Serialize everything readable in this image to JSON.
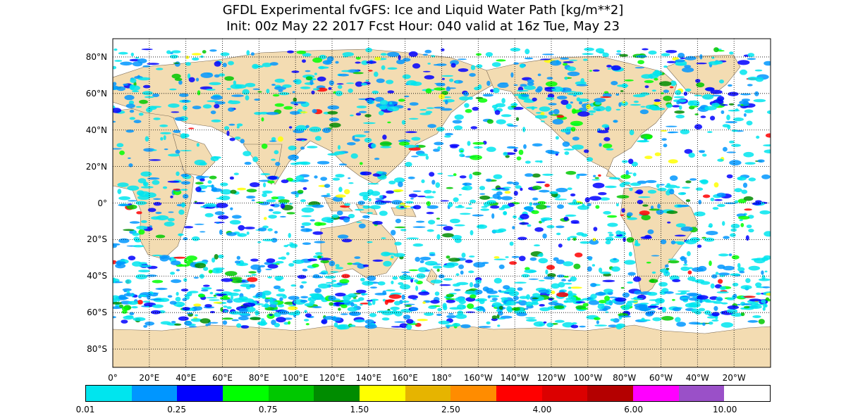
{
  "title": "GFDL Experimental fvGFS: Ice and Liquid Water Path [kg/m**2]",
  "subtitle": "Init: 00z May 22 2017  Fcst Hour: 040 valid at 16z Tue, May 23",
  "map": {
    "projection": "cylindrical equidistant",
    "lon_range": [
      0,
      360
    ],
    "lat_range": [
      -90,
      90
    ],
    "grid": "dotted, every 20 degrees",
    "land_color": "#f3dcb2",
    "ocean_color": "#ffffff",
    "lat_labels": [
      "80°N",
      "60°N",
      "40°N",
      "20°N",
      "0°",
      "20°S",
      "40°S",
      "60°S",
      "80°S"
    ],
    "lon_labels": [
      "0°",
      "20°E",
      "40°E",
      "60°E",
      "80°E",
      "100°E",
      "120°E",
      "140°E",
      "160°E",
      "180°",
      "160°W",
      "140°W",
      "120°W",
      "100°W",
      "80°W",
      "60°W",
      "40°W",
      "20°W"
    ]
  },
  "colorbar": {
    "colors": [
      "#00e5ee",
      "#0096ff",
      "#0000ff",
      "#00ff00",
      "#00c800",
      "#008c00",
      "#ffff00",
      "#e6b400",
      "#ff8c00",
      "#ff0000",
      "#dc0000",
      "#b40000",
      "#ff00ff",
      "#9a50c8",
      "#ffffff"
    ],
    "tick_labels": [
      "0.01",
      "0.25",
      "0.75",
      "1.50",
      "2.50",
      "4.00",
      "6.00",
      "10.00"
    ]
  }
}
